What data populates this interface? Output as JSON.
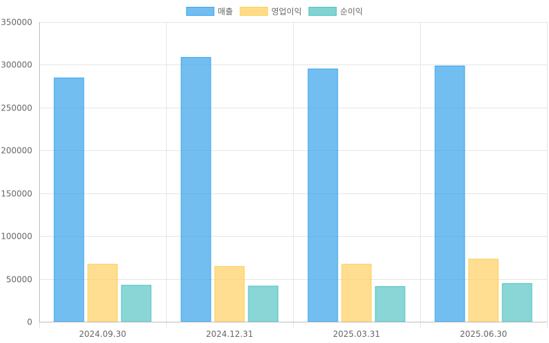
{
  "chart_data": {
    "type": "bar",
    "categories": [
      "2024.09.30",
      "2024.12.31",
      "2025.03.31",
      "2025.06.30"
    ],
    "series": [
      {
        "name": "매출",
        "values": [
          285000,
          309000,
          295500,
          299000
        ],
        "color": "#36A2EB"
      },
      {
        "name": "영업이익",
        "values": [
          67500,
          65000,
          67500,
          73500
        ],
        "color": "#FFCD56"
      },
      {
        "name": "순이익",
        "values": [
          43000,
          42000,
          41500,
          45000
        ],
        "color": "#4BC0C0"
      }
    ],
    "ylim": [
      0,
      350000
    ],
    "yticks": [
      0,
      50000,
      100000,
      150000,
      200000,
      250000,
      300000,
      350000
    ],
    "grid": true,
    "legend_position": "top-center",
    "title": "",
    "xlabel": "",
    "ylabel": ""
  }
}
